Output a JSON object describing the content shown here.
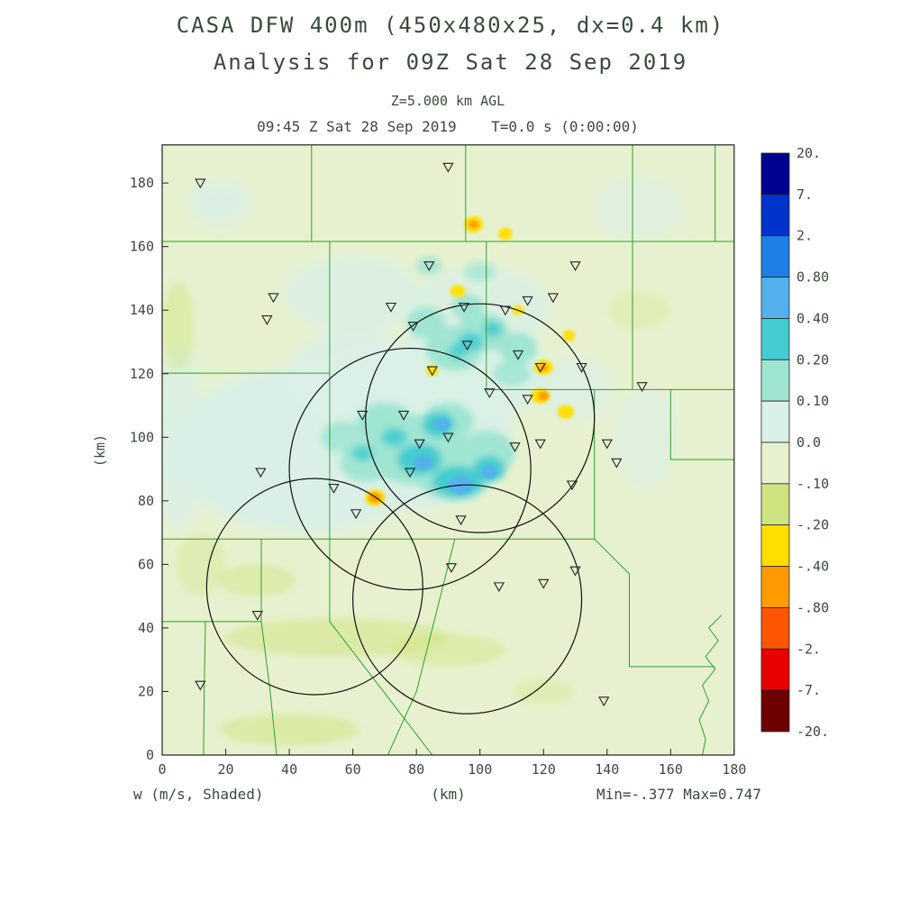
{
  "header": {
    "title_line1": "CASA DFW 400m (450x480x25, dx=0.4 km)",
    "title_line2": "Analysis for 09Z Sat 28 Sep 2019",
    "level_label": "Z=5.000 km AGL",
    "time_label": "09:45 Z Sat 28 Sep 2019    T=0.0 s (0:00:00)"
  },
  "footer": {
    "field_label": "w (m/s, Shaded)",
    "x_axis_unit": "(km)",
    "minmax_label": "Min=-.377 Max=0.747"
  },
  "axes": {
    "y_axis_label": "(km)",
    "x_ticks": [
      "0",
      "20",
      "40",
      "60",
      "80",
      "100",
      "120",
      "140",
      "160",
      "180"
    ],
    "y_ticks": [
      "0",
      "20",
      "40",
      "60",
      "80",
      "100",
      "120",
      "140",
      "160",
      "180"
    ]
  },
  "colorbar": {
    "labels": [
      "20.",
      "7.",
      "2.",
      "0.80",
      "0.40",
      "0.20",
      "0.10",
      "0.0",
      "-.10",
      "-.20",
      "-.40",
      "-.80",
      "-2.",
      "-7.",
      "-20."
    ]
  },
  "colors": {
    "text": "#3a4a3a",
    "county_line": "#2f9e2f",
    "map_base": "#e7f1cf",
    "frame": "#222222",
    "circle_stroke": "#111111",
    "marker_stroke": "#222222"
  },
  "chart_data": {
    "type": "heatmap",
    "field": "w",
    "units": "m/s",
    "title": "CASA DFW 400m (450x480x25, dx=0.4 km) Analysis for 09Z Sat 28 Sep 2019",
    "level": "Z=5.000 km AGL",
    "valid_time": "09:45 Z Sat 28 Sep 2019",
    "forecast_time_s": 0.0,
    "min": -0.377,
    "max": 0.747,
    "x_range_km": [
      0,
      180
    ],
    "y_range_km": [
      0,
      192
    ],
    "x_tick_step_km": 20,
    "contour_levels": [
      20,
      7,
      2,
      0.8,
      0.4,
      0.2,
      0.1,
      0,
      -0.1,
      -0.2,
      -0.4,
      -0.8,
      -2,
      -7,
      -20
    ],
    "colorbar_colors_top_to_bottom": [
      "#000090",
      "#0033cc",
      "#1f7fe8",
      "#54b0ec",
      "#45ccd0",
      "#9fe5d2",
      "#daf0e6",
      "#e7f1cf",
      "#cfe47e",
      "#ffdf00",
      "#ff9b00",
      "#ff5500",
      "#e80000",
      "#6e0000"
    ],
    "radar_range_circles_km": [
      [
        100,
        106,
        36
      ],
      [
        78,
        90,
        38
      ],
      [
        48,
        53,
        34
      ],
      [
        96,
        49,
        36
      ]
    ],
    "site_markers_km": [
      [
        12,
        180
      ],
      [
        90,
        185
      ],
      [
        84,
        154
      ],
      [
        130,
        154
      ],
      [
        35,
        144
      ],
      [
        33,
        137
      ],
      [
        72,
        141
      ],
      [
        95,
        141
      ],
      [
        115,
        143
      ],
      [
        123,
        144
      ],
      [
        108,
        140
      ],
      [
        79,
        135
      ],
      [
        96,
        129
      ],
      [
        112,
        126
      ],
      [
        119,
        122
      ],
      [
        132,
        122
      ],
      [
        85,
        121
      ],
      [
        103,
        114
      ],
      [
        115,
        112
      ],
      [
        151,
        116
      ],
      [
        140,
        98
      ],
      [
        143,
        92
      ],
      [
        63,
        107
      ],
      [
        76,
        107
      ],
      [
        81,
        98
      ],
      [
        90,
        100
      ],
      [
        111,
        97
      ],
      [
        119,
        98
      ],
      [
        129,
        85
      ],
      [
        31,
        89
      ],
      [
        78,
        89
      ],
      [
        54,
        84
      ],
      [
        61,
        76
      ],
      [
        94,
        74
      ],
      [
        91,
        59
      ],
      [
        130,
        58
      ],
      [
        106,
        53
      ],
      [
        120,
        54
      ],
      [
        30,
        44
      ],
      [
        12,
        22
      ],
      [
        139,
        17
      ]
    ],
    "county_borders_km": [
      [
        [
          0,
          161.6
        ],
        [
          180,
          161.6
        ]
      ],
      [
        [
          47,
          192
        ],
        [
          47,
          161.6
        ]
      ],
      [
        [
          95.5,
          192
        ],
        [
          95.5,
          161.6
        ]
      ],
      [
        [
          148,
          192
        ],
        [
          148,
          161.6
        ]
      ],
      [
        [
          174,
          192
        ],
        [
          174,
          161.6
        ]
      ],
      [
        [
          52.7,
          161.6
        ],
        [
          52.7,
          68
        ]
      ],
      [
        [
          102,
          161.6
        ],
        [
          102,
          115
        ]
      ],
      [
        [
          0,
          120.2
        ],
        [
          52.7,
          120.2
        ]
      ],
      [
        [
          102,
          115
        ],
        [
          180,
          115
        ]
      ],
      [
        [
          148,
          161.6
        ],
        [
          148,
          115
        ]
      ],
      [
        [
          136,
          115
        ],
        [
          136,
          68
        ]
      ],
      [
        [
          0,
          68
        ],
        [
          136,
          68
        ]
      ],
      [
        [
          31.2,
          68
        ],
        [
          31.2,
          42
        ]
      ],
      [
        [
          0,
          42
        ],
        [
          31.2,
          42
        ]
      ],
      [
        [
          31.2,
          42
        ],
        [
          34,
          20
        ],
        [
          36,
          0
        ]
      ],
      [
        [
          13.6,
          42
        ],
        [
          13.2,
          20
        ],
        [
          13,
          0
        ]
      ],
      [
        [
          52.7,
          68
        ],
        [
          52.7,
          42
        ],
        [
          85,
          0
        ]
      ],
      [
        [
          92.1,
          68
        ],
        [
          80,
          20
        ],
        [
          71,
          0
        ]
      ],
      [
        [
          136,
          68
        ],
        [
          147,
          57
        ],
        [
          147,
          27.8
        ]
      ],
      [
        [
          147,
          27.8
        ],
        [
          174,
          27.8
        ]
      ],
      [
        [
          160,
          115
        ],
        [
          160,
          93
        ],
        [
          180,
          93
        ]
      ],
      [
        [
          176,
          44
        ],
        [
          172,
          40
        ],
        [
          175,
          36
        ],
        [
          171,
          31
        ],
        [
          174,
          27
        ],
        [
          170,
          22
        ],
        [
          172,
          17
        ],
        [
          169,
          11
        ],
        [
          171,
          5
        ],
        [
          170,
          0
        ]
      ]
    ],
    "blob_format": [
      "x_km",
      "y_km",
      "rx_km",
      "ry_km",
      "fill",
      "opacity",
      "layer"
    ],
    "shaded_blobs": [
      [
        45,
        96,
        42,
        26,
        "#daf0e6",
        1,
        "soft"
      ],
      [
        76,
        103,
        34,
        26,
        "#daf0e6",
        1,
        "soft"
      ],
      [
        95,
        120,
        26,
        16,
        "#daf0e6",
        0.95,
        "soft"
      ],
      [
        60,
        145,
        22,
        12,
        "#daf0e6",
        0.8,
        "soft"
      ],
      [
        100,
        140,
        22,
        14,
        "#daf0e6",
        0.8,
        "soft"
      ],
      [
        18,
        174,
        10,
        7,
        "#daf0e6",
        0.9,
        "soft"
      ],
      [
        150,
        172,
        14,
        10,
        "#daf0e6",
        0.65,
        "soft"
      ],
      [
        152,
        100,
        10,
        16,
        "#daf0e6",
        0.65,
        "soft"
      ],
      [
        5,
        100,
        8,
        30,
        "#daf0e6",
        0.8,
        "soft"
      ],
      [
        130,
        115,
        12,
        10,
        "#daf0e6",
        0.7,
        "soft"
      ],
      [
        60,
        120,
        20,
        14,
        "#daf0e6",
        0.9,
        "soft"
      ],
      [
        55,
        37,
        35,
        6,
        "#cfe47e",
        0.5,
        "mid"
      ],
      [
        90,
        33,
        18,
        5,
        "#cfe47e",
        0.45,
        "mid"
      ],
      [
        30,
        55,
        12,
        5,
        "#cfe47e",
        0.45,
        "mid"
      ],
      [
        40,
        8,
        22,
        5,
        "#cfe47e",
        0.5,
        "mid"
      ],
      [
        5,
        135,
        5,
        14,
        "#cfe47e",
        0.45,
        "mid"
      ],
      [
        120,
        20,
        10,
        4,
        "#cfe47e",
        0.35,
        "mid"
      ],
      [
        12,
        60,
        8,
        10,
        "#cfe47e",
        0.35,
        "mid"
      ],
      [
        150,
        140,
        10,
        6,
        "#cfe47e",
        0.3,
        "mid"
      ],
      [
        80,
        96,
        16,
        11,
        "#9fe5d2",
        1,
        "mid"
      ],
      [
        92,
        88,
        12,
        8,
        "#9fe5d2",
        1,
        "mid"
      ],
      [
        70,
        104,
        9,
        7,
        "#9fe5d2",
        1,
        "mid"
      ],
      [
        102,
        95,
        9,
        7,
        "#9fe5d2",
        1,
        "mid"
      ],
      [
        90,
        105,
        8,
        6,
        "#9fe5d2",
        1,
        "mid"
      ],
      [
        92,
        128,
        9,
        7,
        "#9fe5d2",
        1,
        "mid"
      ],
      [
        101,
        133,
        8,
        6,
        "#9fe5d2",
        1,
        "mid"
      ],
      [
        112,
        128,
        6,
        5,
        "#9fe5d2",
        1,
        "mid"
      ],
      [
        83,
        136,
        6,
        5,
        "#9fe5d2",
        1,
        "mid"
      ],
      [
        96,
        141,
        5,
        4,
        "#9fe5d2",
        1,
        "mid"
      ],
      [
        64,
        92,
        8,
        6,
        "#9fe5d2",
        0.95,
        "mid"
      ],
      [
        57,
        100,
        7,
        5,
        "#9fe5d2",
        0.85,
        "mid"
      ],
      [
        110,
        120,
        6,
        4,
        "#9fe5d2",
        0.85,
        "mid"
      ],
      [
        84,
        154,
        4,
        3,
        "#9fe5d2",
        0.85,
        "mid"
      ],
      [
        100,
        152,
        5,
        3,
        "#9fe5d2",
        0.75,
        "mid"
      ],
      [
        81,
        93,
        7,
        5,
        "#45ccd0",
        1,
        "mid"
      ],
      [
        93,
        86,
        8,
        5,
        "#45ccd0",
        1,
        "mid"
      ],
      [
        103,
        90,
        5,
        4,
        "#45ccd0",
        1,
        "mid"
      ],
      [
        87,
        104,
        5,
        4,
        "#45ccd0",
        1,
        "mid"
      ],
      [
        73,
        100,
        4,
        3,
        "#45ccd0",
        0.9,
        "mid"
      ],
      [
        97,
        130,
        4,
        3,
        "#45ccd0",
        0.9,
        "mid"
      ],
      [
        104,
        134,
        3,
        2.5,
        "#45ccd0",
        0.9,
        "mid"
      ],
      [
        93,
        127,
        3,
        2.5,
        "#45ccd0",
        0.85,
        "mid"
      ],
      [
        63,
        95,
        3.5,
        2.5,
        "#45ccd0",
        0.85,
        "mid"
      ],
      [
        94,
        85,
        4,
        2.8,
        "#54b0ec",
        1,
        "spot"
      ],
      [
        82,
        92,
        3,
        2.2,
        "#54b0ec",
        1,
        "spot"
      ],
      [
        103,
        89,
        2.5,
        2,
        "#54b0ec",
        0.95,
        "spot"
      ],
      [
        88,
        104,
        2.5,
        2,
        "#54b0ec",
        0.9,
        "spot"
      ],
      [
        98,
        167,
        3,
        2.6,
        "#ffdf00",
        1,
        "spot"
      ],
      [
        108,
        164,
        2.2,
        2,
        "#ffdf00",
        0.95,
        "spot"
      ],
      [
        93,
        146,
        2.4,
        2,
        "#ffdf00",
        0.95,
        "spot"
      ],
      [
        120,
        122,
        3,
        2.4,
        "#ffdf00",
        1,
        "spot"
      ],
      [
        127,
        108,
        2.6,
        2.2,
        "#ffdf00",
        0.95,
        "spot"
      ],
      [
        128,
        132,
        2,
        1.8,
        "#ffdf00",
        0.9,
        "spot"
      ],
      [
        85,
        121,
        2,
        1.8,
        "#ffdf00",
        0.9,
        "spot"
      ],
      [
        112,
        140,
        2,
        1.6,
        "#ffdf00",
        0.85,
        "spot"
      ],
      [
        119,
        113,
        3,
        2.4,
        "#ffdf00",
        1,
        "spot"
      ],
      [
        67,
        81,
        3.2,
        2.6,
        "#ffdf00",
        1,
        "spot"
      ],
      [
        98,
        167,
        1.6,
        1.3,
        "#ff9b00",
        1,
        "spot"
      ],
      [
        120,
        113,
        1.8,
        1.4,
        "#ff9b00",
        1,
        "spot"
      ],
      [
        67,
        81,
        2,
        1.6,
        "#ff9b00",
        1,
        "spot"
      ],
      [
        120,
        122,
        1.4,
        1.2,
        "#ff9b00",
        0.95,
        "spot"
      ]
    ]
  }
}
